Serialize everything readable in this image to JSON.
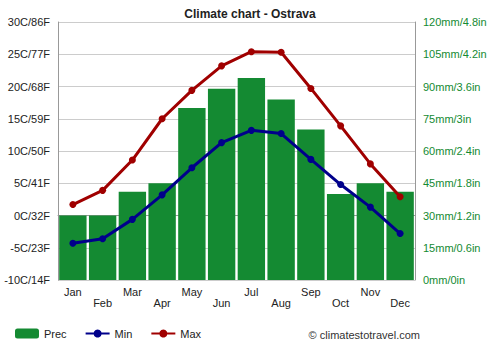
{
  "chart_data": {
    "type": "bar",
    "title": "Climate chart - Ostrava",
    "categories": [
      "Jan",
      "Feb",
      "Mar",
      "Apr",
      "May",
      "Jun",
      "Jul",
      "Aug",
      "Sep",
      "Oct",
      "Nov",
      "Dec"
    ],
    "series": [
      {
        "name": "Prec",
        "type": "bar",
        "axis": "y2",
        "color": "#148a32",
        "values": [
          30,
          30,
          41,
          45,
          80,
          89,
          94,
          84,
          70,
          40,
          45,
          41
        ]
      },
      {
        "name": "Min",
        "type": "line",
        "color": "#00008b",
        "marker": "circle",
        "values": [
          -4.3,
          -3.6,
          -0.6,
          3.2,
          7.4,
          11.3,
          13.2,
          12.7,
          8.7,
          4.8,
          1.3,
          -2.8
        ]
      },
      {
        "name": "Max",
        "type": "line",
        "color": "#a00000",
        "marker": "circle",
        "values": [
          1.7,
          3.9,
          8.6,
          15.0,
          19.4,
          23.2,
          25.4,
          25.3,
          19.7,
          13.9,
          8.0,
          2.9
        ]
      }
    ],
    "ylim": [
      -10,
      30
    ],
    "yticks": [
      {
        "value": -10,
        "label": "-10C/14F"
      },
      {
        "value": -5,
        "label": "-5C/23F"
      },
      {
        "value": 0,
        "label": "0C/32F"
      },
      {
        "value": 5,
        "label": "5C/41F"
      },
      {
        "value": 10,
        "label": "10C/50F"
      },
      {
        "value": 15,
        "label": "15C/59F"
      },
      {
        "value": 20,
        "label": "20C/68F"
      },
      {
        "value": 25,
        "label": "25C/77F"
      },
      {
        "value": 30,
        "label": "30C/86F"
      }
    ],
    "y2lim": [
      0,
      120
    ],
    "y2ticks": [
      {
        "value": 0,
        "label": "0mm/0in"
      },
      {
        "value": 15,
        "label": "15mm/0.6in"
      },
      {
        "value": 30,
        "label": "30mm/1.2in"
      },
      {
        "value": 45,
        "label": "45mm/1.8in"
      },
      {
        "value": 60,
        "label": "60mm/2.4in"
      },
      {
        "value": 75,
        "label": "75mm/3in"
      },
      {
        "value": 90,
        "label": "90mm/3.6in"
      },
      {
        "value": 105,
        "label": "105mm/4.2in"
      },
      {
        "value": 120,
        "label": "120mm/4.8in"
      }
    ],
    "grid": true,
    "legend": "bottom",
    "annotations": [
      "© climatestotravel.com"
    ]
  }
}
